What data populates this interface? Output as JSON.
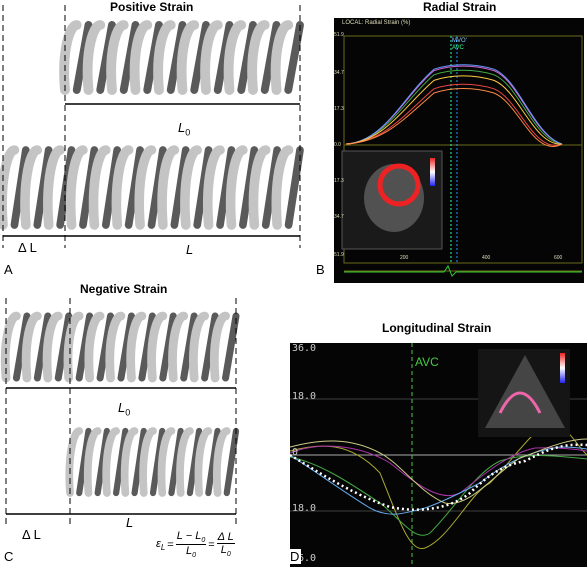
{
  "panels": {
    "a": {
      "title": "Positive Strain",
      "panel_label": "A",
      "L0_main": "L",
      "L0_sub": "0",
      "L_label": "L",
      "delta_label": "Δ L"
    },
    "b": {
      "title": "Radial Strain",
      "panel_label": "B",
      "header": "LOCAL: Radial Strain (%)",
      "marker_1": "MVO'",
      "marker_2": "AVC",
      "y_ticks": [
        "51.9",
        "34.7",
        "17.3",
        "0.0",
        "17.3",
        "34.7",
        "51.9"
      ],
      "x_ticks": [
        "200",
        "400",
        "600"
      ]
    },
    "c": {
      "title": "Negative Strain",
      "panel_label": "C",
      "L0_main": "L",
      "L0_sub": "0",
      "L_label": "L",
      "delta_label": "Δ L",
      "formula": {
        "lhs": "ε",
        "lhs_sub": "L",
        "eq": "=",
        "n1_a": "L − L",
        "n1_sub": "0",
        "d1": "L",
        "d1_sub": "0",
        "n2": "Δ L",
        "d2": "L",
        "d2_sub": "0"
      }
    },
    "d": {
      "title": "Longitudinal Strain",
      "panel_label": "D",
      "marker": "AVC",
      "y_ticks": [
        "36.0",
        "18.0",
        "0",
        "18.0",
        "36.0"
      ]
    }
  },
  "colors": {
    "light_coil": "#c4c4c4",
    "dark_coil": "#5a5a5a",
    "screen_bg": "#050505",
    "radial_grid": "#6a6a1a"
  }
}
